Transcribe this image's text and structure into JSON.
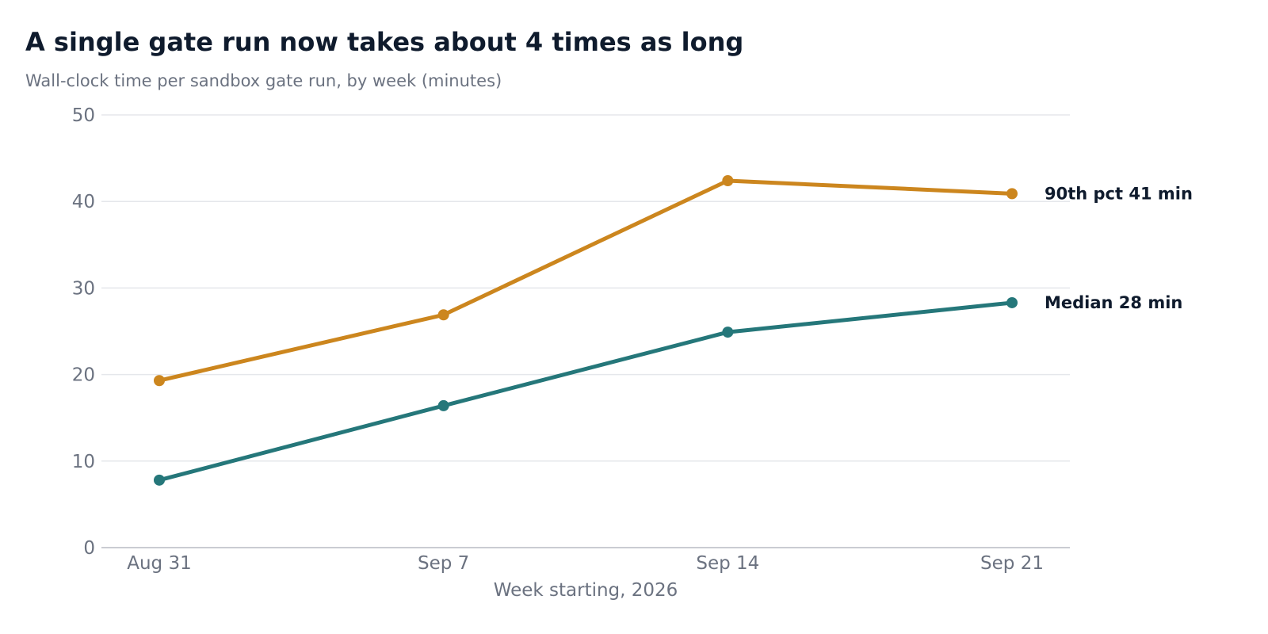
{
  "chart_data": {
    "type": "line",
    "title": "A single gate run now takes about 4 times as long",
    "subtitle": "Wall-clock time per sandbox gate run, by week (minutes)",
    "xlabel": "Week starting, 2026",
    "ylabel": "",
    "categories": [
      "Aug 31",
      "Sep 7",
      "Sep 14",
      "Sep 21"
    ],
    "ylim": [
      0,
      50
    ],
    "yticks": [
      0,
      10,
      20,
      30,
      40,
      50
    ],
    "ytick_labels": [
      "0",
      "10",
      "20",
      "30",
      "40",
      "50"
    ],
    "grid": "horizontal",
    "legend": "end-of-line labels",
    "series": [
      {
        "key": "p90",
        "values": [
          19.3,
          26.9,
          42.4,
          40.9
        ],
        "color": "#cc861e",
        "end_label": "90th pct  41 min"
      },
      {
        "key": "median",
        "values": [
          7.8,
          16.4,
          24.9,
          28.3
        ],
        "color": "#25777a",
        "end_label": "Median  28 min"
      }
    ],
    "colors": {
      "grid": "#e5e7eb",
      "axis": "#b8bcc4",
      "text_muted": "#6b7280",
      "text_dark": "#0f1b2d"
    }
  }
}
